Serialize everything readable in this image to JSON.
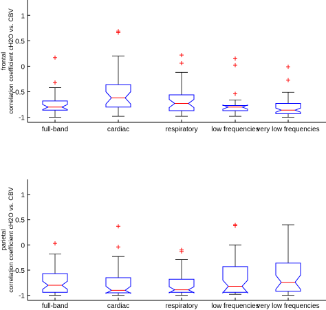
{
  "chart_data": [
    {
      "type": "box",
      "ylabel": "frontal\ncorrelation coefficient cH2O vs. CBV",
      "ylim": [
        -1.1,
        1.3
      ],
      "yticks": [
        1,
        0.5,
        0,
        -0.5,
        -1
      ],
      "ytick_labels": [
        "1",
        "0.5",
        "0",
        "-0.5",
        "-1"
      ],
      "categories": [
        "full-band",
        "cardiac",
        "respiratory",
        "low frequencies",
        "very low frequencies"
      ],
      "boxes": [
        {
          "whisker_low": -1.0,
          "q1": -0.86,
          "median": -0.8,
          "q3": -0.68,
          "whisker_high": -0.42,
          "notch": [
            -0.85,
            -0.75
          ],
          "outliers": [
            0.17,
            -0.32
          ]
        },
        {
          "whisker_low": -0.98,
          "q1": -0.8,
          "median": -0.62,
          "q3": -0.36,
          "whisker_high": 0.2,
          "notch": [
            -0.74,
            -0.5
          ],
          "outliers": [
            0.66,
            0.69
          ]
        },
        {
          "whisker_low": -0.98,
          "q1": -0.87,
          "median": -0.73,
          "q3": -0.56,
          "whisker_high": -0.12,
          "notch": [
            -0.81,
            -0.65
          ],
          "outliers": [
            0.22,
            0.06
          ]
        },
        {
          "whisker_low": -0.98,
          "q1": -0.87,
          "median": -0.8,
          "q3": -0.77,
          "whisker_high": -0.66,
          "notch": [
            -0.84,
            -0.76
          ],
          "outliers": [
            0.15,
            0.02,
            -0.54
          ]
        },
        {
          "whisker_low": -1.0,
          "q1": -0.93,
          "median": -0.86,
          "q3": -0.73,
          "whisker_high": -0.51,
          "notch": [
            -0.9,
            -0.82
          ],
          "outliers": [
            -0.01,
            -0.27
          ]
        }
      ]
    },
    {
      "type": "box",
      "ylabel": "parietal\ncorrelation coefficient cH2O vs. CBV",
      "ylim": [
        -1.1,
        1.3
      ],
      "yticks": [
        1,
        0.5,
        0,
        -0.5,
        -1
      ],
      "ytick_labels": [
        "1",
        "0.5",
        "0",
        "-0.5",
        "-1"
      ],
      "categories": [
        "full-band",
        "cardiac",
        "respiratory",
        "low frequencies",
        "very low frequencies"
      ],
      "boxes": [
        {
          "whisker_low": -1.0,
          "q1": -0.94,
          "median": -0.8,
          "q3": -0.57,
          "whisker_high": -0.18,
          "notch": [
            -0.88,
            -0.72
          ],
          "outliers": [
            0.03
          ]
        },
        {
          "whisker_low": -1.0,
          "q1": -0.95,
          "median": -0.9,
          "q3": -0.65,
          "whisker_high": -0.23,
          "notch": [
            -0.96,
            -0.82
          ],
          "outliers": [
            0.37,
            -0.04
          ]
        },
        {
          "whisker_low": -1.0,
          "q1": -0.94,
          "median": -0.89,
          "q3": -0.68,
          "whisker_high": -0.29,
          "notch": [
            -0.95,
            -0.83
          ],
          "outliers": [
            -0.1,
            -0.13
          ]
        },
        {
          "whisker_low": -0.98,
          "q1": -0.94,
          "median": -0.82,
          "q3": -0.43,
          "whisker_high": 0.0,
          "notch": [
            -0.95,
            -0.7
          ],
          "outliers": [
            0.38,
            0.4
          ]
        },
        {
          "whisker_low": -1.0,
          "q1": -0.92,
          "median": -0.74,
          "q3": -0.36,
          "whisker_high": 0.4,
          "notch": [
            -0.88,
            -0.6
          ],
          "outliers": []
        }
      ]
    }
  ],
  "colors": {
    "box": "#0000ff",
    "median": "#ff0000",
    "outlier": "#ff0000",
    "whisker": "#000000",
    "axis": "#000000"
  }
}
